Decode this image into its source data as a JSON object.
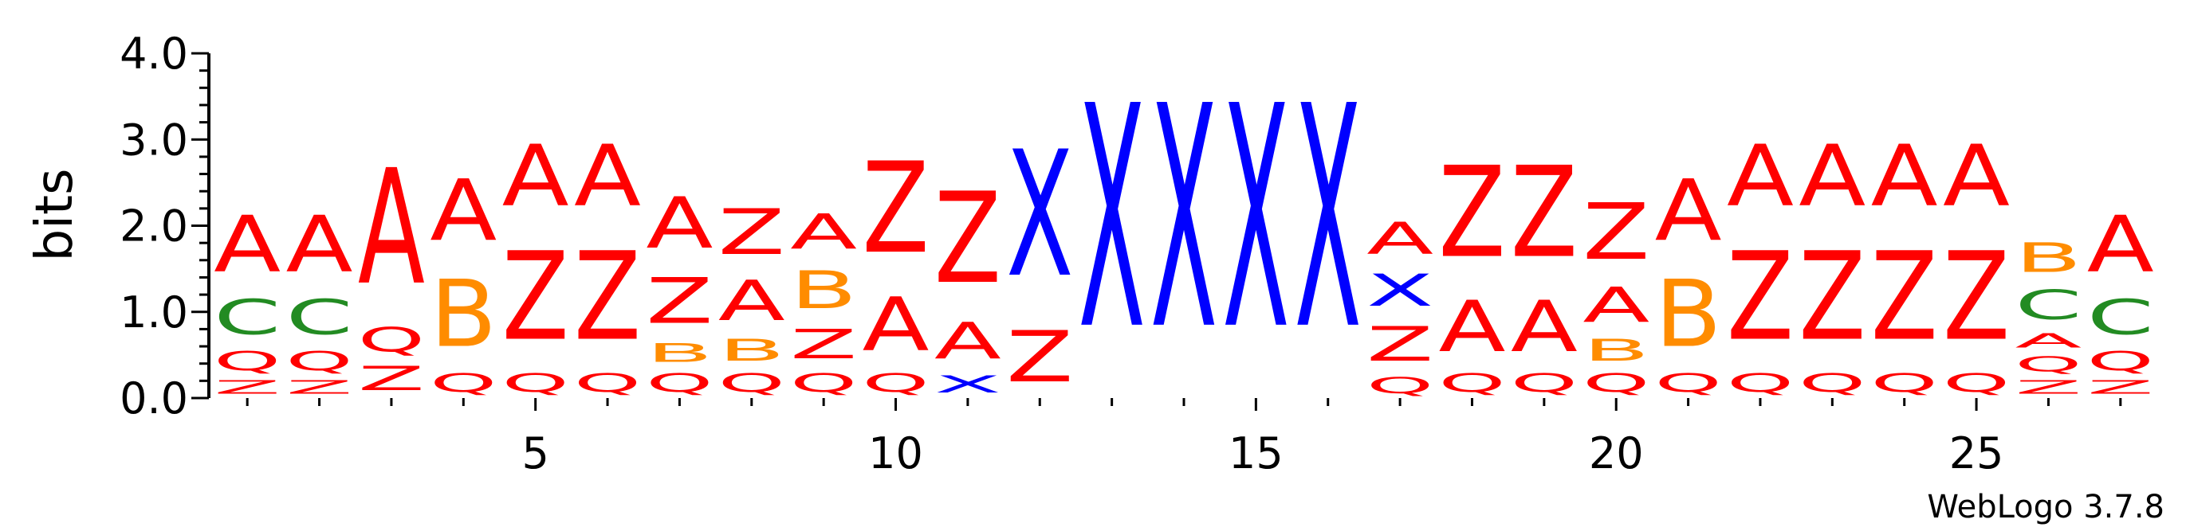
{
  "chart_data": {
    "type": "sequence-logo",
    "ylabel": "bits",
    "ylim": [
      0,
      4.0
    ],
    "yticks": [
      {
        "value": 0.0,
        "label": "0.0"
      },
      {
        "value": 1.0,
        "label": "1.0"
      },
      {
        "value": 2.0,
        "label": "2.0"
      },
      {
        "value": 3.0,
        "label": "3.0"
      },
      {
        "value": 4.0,
        "label": "4.0"
      }
    ],
    "xlim": [
      0.5,
      27.5
    ],
    "xticks": [
      {
        "value": 5,
        "label": "5"
      },
      {
        "value": 10,
        "label": "10"
      },
      {
        "value": 15,
        "label": "15"
      },
      {
        "value": 20,
        "label": "20"
      },
      {
        "value": 25,
        "label": "25"
      }
    ],
    "colors": {
      "A": "#ff0000",
      "Z": "#ff0000",
      "Q": "#ff0000",
      "B": "#ff8c00",
      "C": "#228b22",
      "X": "#0000ff"
    },
    "positions": [
      {
        "pos": 1,
        "stack": [
          [
            "Z",
            0.25
          ],
          [
            "Q",
            0.36
          ],
          [
            "C",
            0.65
          ],
          [
            "A",
            1.05
          ]
        ]
      },
      {
        "pos": 2,
        "stack": [
          [
            "Z",
            0.25
          ],
          [
            "Q",
            0.36
          ],
          [
            "C",
            0.65
          ],
          [
            "A",
            1.05
          ]
        ]
      },
      {
        "pos": 3,
        "stack": [
          [
            "Z",
            0.45
          ],
          [
            "Q",
            0.45
          ],
          [
            "A",
            2.15
          ]
        ]
      },
      {
        "pos": 4,
        "stack": [
          [
            "Q",
            0.35
          ],
          [
            "B",
            1.25
          ],
          [
            "A",
            1.15
          ]
        ]
      },
      {
        "pos": 5,
        "stack": [
          [
            "Q",
            0.35
          ],
          [
            "Z",
            1.65
          ],
          [
            "A",
            1.15
          ]
        ]
      },
      {
        "pos": 6,
        "stack": [
          [
            "Q",
            0.35
          ],
          [
            "Z",
            1.65
          ],
          [
            "A",
            1.15
          ]
        ]
      },
      {
        "pos": 7,
        "stack": [
          [
            "Q",
            0.35
          ],
          [
            "B",
            0.35
          ],
          [
            "Z",
            0.85
          ],
          [
            "A",
            0.95
          ]
        ]
      },
      {
        "pos": 8,
        "stack": [
          [
            "Q",
            0.35
          ],
          [
            "B",
            0.4
          ],
          [
            "A",
            0.75
          ],
          [
            "Z",
            0.85
          ]
        ]
      },
      {
        "pos": 9,
        "stack": [
          [
            "Q",
            0.35
          ],
          [
            "Z",
            0.55
          ],
          [
            "B",
            0.7
          ],
          [
            "A",
            0.65
          ]
        ]
      },
      {
        "pos": 10,
        "stack": [
          [
            "Q",
            0.35
          ],
          [
            "A",
            1.0
          ],
          [
            "Z",
            1.7
          ]
        ]
      },
      {
        "pos": 11,
        "stack": [
          [
            "X",
            0.32
          ],
          [
            "A",
            0.68
          ],
          [
            "Z",
            1.7
          ]
        ]
      },
      {
        "pos": 12,
        "stack": [
          [
            "Z",
            0.95
          ],
          [
            "X",
            2.35
          ]
        ]
      },
      {
        "pos": 13,
        "stack": [
          [
            "X",
            4.15
          ]
        ]
      },
      {
        "pos": 14,
        "stack": [
          [
            "X",
            4.15
          ]
        ]
      },
      {
        "pos": 15,
        "stack": [
          [
            "X",
            4.15
          ]
        ]
      },
      {
        "pos": 16,
        "stack": [
          [
            "X",
            4.15
          ]
        ]
      },
      {
        "pos": 17,
        "stack": [
          [
            "Q",
            0.3
          ],
          [
            "Z",
            0.65
          ],
          [
            "X",
            0.6
          ],
          [
            "A",
            0.6
          ]
        ]
      },
      {
        "pos": 18,
        "stack": [
          [
            "Q",
            0.35
          ],
          [
            "A",
            0.95
          ],
          [
            "Z",
            1.7
          ]
        ]
      },
      {
        "pos": 19,
        "stack": [
          [
            "Q",
            0.35
          ],
          [
            "A",
            0.95
          ],
          [
            "Z",
            1.7
          ]
        ]
      },
      {
        "pos": 20,
        "stack": [
          [
            "Q",
            0.35
          ],
          [
            "B",
            0.4
          ],
          [
            "A",
            0.65
          ],
          [
            "Z",
            1.05
          ]
        ]
      },
      {
        "pos": 21,
        "stack": [
          [
            "Q",
            0.35
          ],
          [
            "B",
            1.25
          ],
          [
            "A",
            1.15
          ]
        ]
      },
      {
        "pos": 22,
        "stack": [
          [
            "Q",
            0.35
          ],
          [
            "Z",
            1.65
          ],
          [
            "A",
            1.15
          ]
        ]
      },
      {
        "pos": 23,
        "stack": [
          [
            "Q",
            0.35
          ],
          [
            "Z",
            1.65
          ],
          [
            "A",
            1.15
          ]
        ]
      },
      {
        "pos": 24,
        "stack": [
          [
            "Q",
            0.35
          ],
          [
            "Z",
            1.65
          ],
          [
            "A",
            1.15
          ]
        ]
      },
      {
        "pos": 25,
        "stack": [
          [
            "Q",
            0.35
          ],
          [
            "Z",
            1.65
          ],
          [
            "A",
            1.15
          ]
        ]
      },
      {
        "pos": 26,
        "stack": [
          [
            "Z",
            0.25
          ],
          [
            "Q",
            0.28
          ],
          [
            "A",
            0.27
          ],
          [
            "C",
            0.55
          ],
          [
            "B",
            0.55
          ]
        ]
      },
      {
        "pos": 27,
        "stack": [
          [
            "Z",
            0.25
          ],
          [
            "Q",
            0.36
          ],
          [
            "C",
            0.65
          ],
          [
            "A",
            1.05
          ]
        ]
      }
    ]
  },
  "footer": {
    "version": "WebLogo 3.7.8"
  }
}
